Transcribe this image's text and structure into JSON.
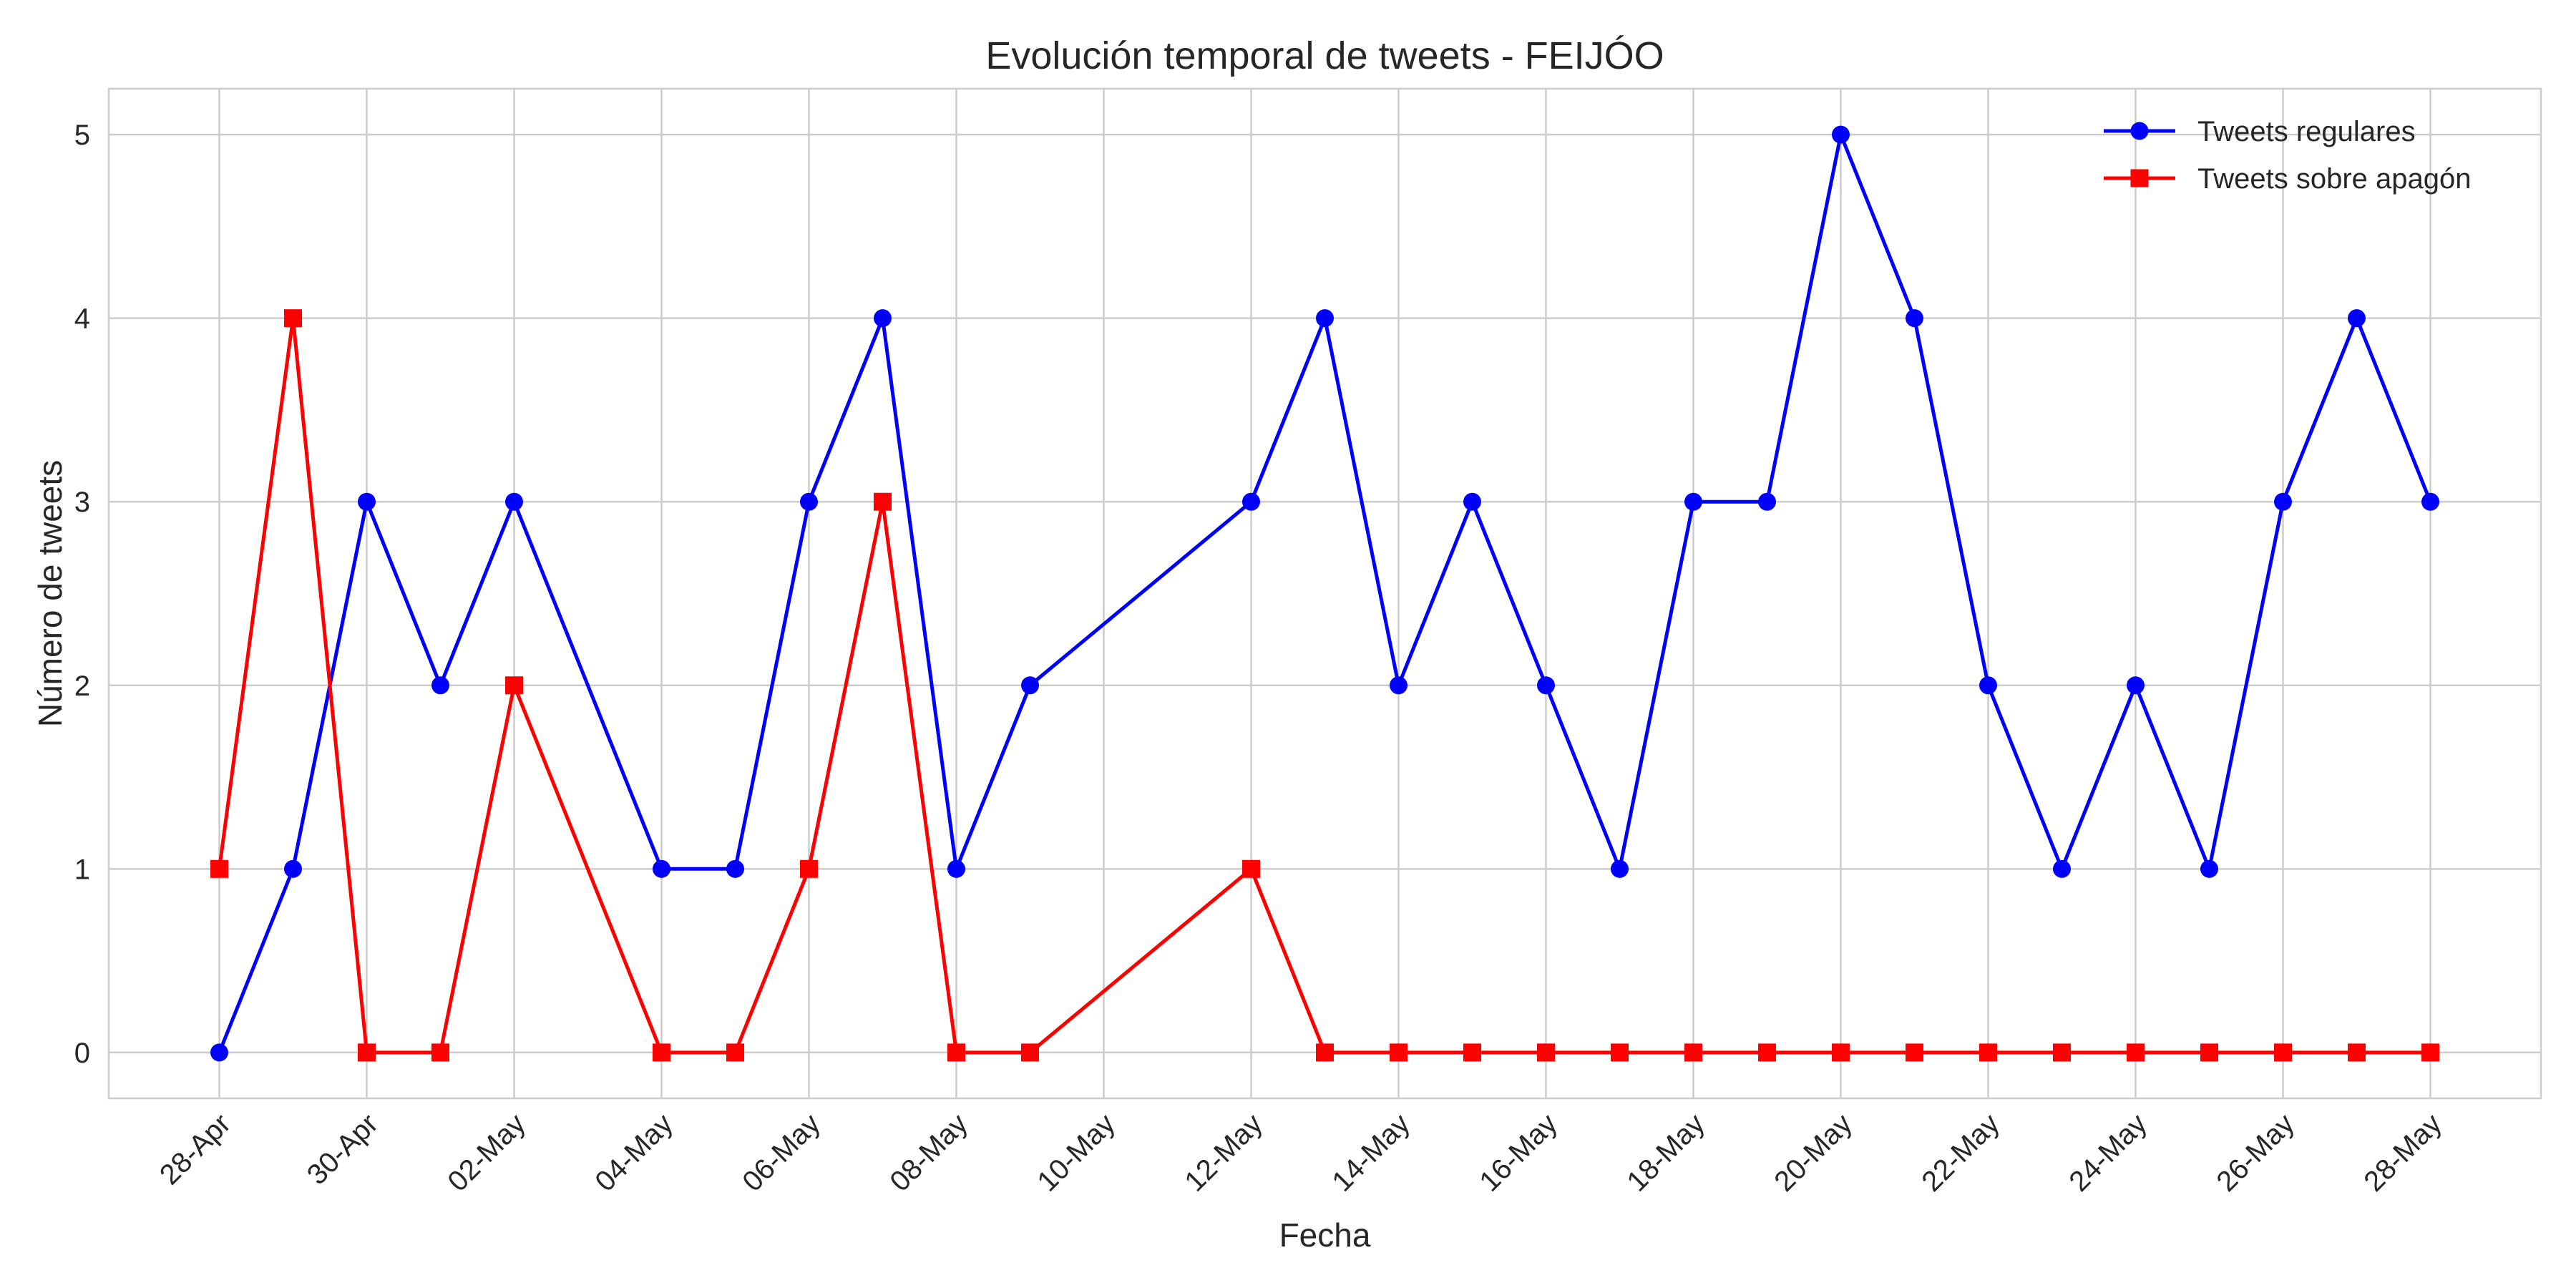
{
  "chart_data": {
    "type": "line",
    "title": "Evolución temporal de tweets - FEIJÓO",
    "xlabel": "Fecha",
    "ylabel": "Número de tweets",
    "x_start": "2025-04-28",
    "x_tick_days": [
      0,
      2,
      4,
      6,
      8,
      10,
      12,
      14,
      16,
      18,
      20,
      22,
      24,
      26,
      28,
      30
    ],
    "x_tick_labels": [
      "28-Apr",
      "30-Apr",
      "02-May",
      "04-May",
      "06-May",
      "08-May",
      "10-May",
      "12-May",
      "14-May",
      "16-May",
      "18-May",
      "20-May",
      "22-May",
      "24-May",
      "26-May",
      "28-May"
    ],
    "xlim_days": [
      -1.5,
      31.5
    ],
    "ylim": [
      -0.25,
      5.25
    ],
    "y_ticks": [
      0,
      1,
      2,
      3,
      4,
      5
    ],
    "grid": true,
    "legend_position": "top-right",
    "series": [
      {
        "name": "Tweets regulares",
        "color": "#0000ff",
        "marker": "circle",
        "x_days": [
          0,
          1,
          2,
          3,
          4,
          6,
          7,
          8,
          9,
          10,
          11,
          14,
          15,
          16,
          17,
          18,
          19,
          20,
          21,
          22,
          23,
          24,
          25,
          26,
          27,
          28,
          29,
          30
        ],
        "values": [
          0,
          1,
          3,
          2,
          3,
          1,
          1,
          3,
          4,
          1,
          2,
          3,
          4,
          2,
          3,
          2,
          1,
          3,
          3,
          5,
          4,
          2,
          1,
          2,
          1,
          3,
          4,
          3
        ]
      },
      {
        "name": "Tweets sobre apagón",
        "color": "#ff0000",
        "marker": "square",
        "x_days": [
          0,
          1,
          2,
          3,
          4,
          6,
          7,
          8,
          9,
          10,
          11,
          14,
          15,
          16,
          17,
          18,
          19,
          20,
          21,
          22,
          23,
          24,
          25,
          26,
          27,
          28,
          29,
          30
        ],
        "values": [
          1,
          4,
          0,
          0,
          2,
          0,
          0,
          1,
          3,
          0,
          0,
          1,
          0,
          0,
          0,
          0,
          0,
          0,
          0,
          0,
          0,
          0,
          0,
          0,
          0,
          0,
          0,
          0
        ]
      }
    ]
  }
}
